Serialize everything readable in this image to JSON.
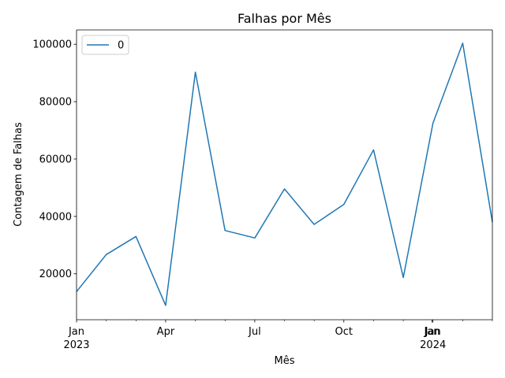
{
  "chart_data": {
    "type": "line",
    "title": "Falhas por Mês",
    "xlabel": "Mês",
    "ylabel": "Contagem de Falhas",
    "x_axis_type": "date",
    "x": [
      "2023-01",
      "2023-02",
      "2023-03",
      "2023-04",
      "2023-05",
      "2023-06",
      "2023-07",
      "2023-08",
      "2023-09",
      "2023-10",
      "2023-11",
      "2023-12",
      "2024-01",
      "2024-02",
      "2024-03"
    ],
    "x_tick_labels": [
      {
        "x": "2023-01",
        "line1": "Jan",
        "line2": "2023"
      },
      {
        "x": "2023-04",
        "line1": "Apr",
        "line2": ""
      },
      {
        "x": "2023-07",
        "line1": "Jul",
        "line2": ""
      },
      {
        "x": "2023-10",
        "line1": "Oct",
        "line2": ""
      },
      {
        "x": "2024-01",
        "line1": "Jan",
        "line2": "2024"
      }
    ],
    "x_minor_ticks": [
      "2023-02",
      "2023-03",
      "2023-05",
      "2023-06",
      "2023-08",
      "2023-09",
      "2023-11",
      "2023-12",
      "2024-02",
      "2024-03"
    ],
    "x_jan_duplicate_label": {
      "x": "2023-12-31",
      "line1": "Jan"
    },
    "xlim": [
      "2023-01",
      "2024-03"
    ],
    "ylim": [
      4000,
      105000
    ],
    "y_ticks": [
      20000,
      40000,
      60000,
      80000,
      100000
    ],
    "y_tick_labels": [
      "20000",
      "40000",
      "60000",
      "80000",
      "100000"
    ],
    "series": [
      {
        "name": "0",
        "color": "#1f77b4",
        "values": [
          13800,
          26700,
          33000,
          9000,
          90300,
          35100,
          32500,
          49600,
          37200,
          44200,
          63200,
          18700,
          72500,
          100400,
          38000
        ]
      }
    ],
    "legend_position": "upper-left",
    "grid": false
  }
}
